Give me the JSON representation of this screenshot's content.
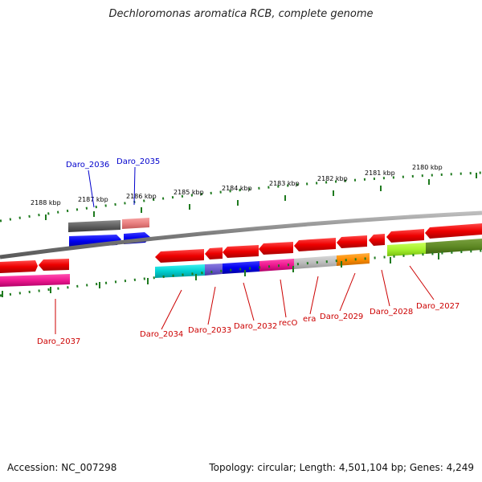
{
  "title": "Dechloromonas aromatica RCB, complete genome",
  "footer": {
    "accession": "Accession: NC_007298",
    "topology": "Topology: circular; Length: 4,501,104 bp; Genes: 4,249"
  },
  "scale_labels": [
    "2188 kbp",
    "2187 kbp",
    "2186 kbp",
    "2185 kbp",
    "2184 kbp",
    "2183 kbp",
    "2182 kbp",
    "2181 kbp",
    "2180 kbp"
  ],
  "genes": [
    {
      "name": "Daro_2036",
      "color": "#0000cc"
    },
    {
      "name": "Daro_2035",
      "color": "#0000cc"
    },
    {
      "name": "Daro_2037",
      "color": "#cc0000"
    },
    {
      "name": "Daro_2034",
      "color": "#cc0000"
    },
    {
      "name": "Daro_2033",
      "color": "#cc0000"
    },
    {
      "name": "Daro_2032",
      "color": "#cc0000"
    },
    {
      "name": "recO",
      "color": "#cc0000"
    },
    {
      "name": "era",
      "color": "#cc0000"
    },
    {
      "name": "Daro_2029",
      "color": "#cc0000"
    },
    {
      "name": "Daro_2028",
      "color": "#cc0000"
    },
    {
      "name": "Daro_2027",
      "color": "#cc0000"
    }
  ],
  "colors": {
    "backbone": "#7a7a7a",
    "forward_gene": "#ee0000",
    "tick": "#1f7a1f"
  }
}
